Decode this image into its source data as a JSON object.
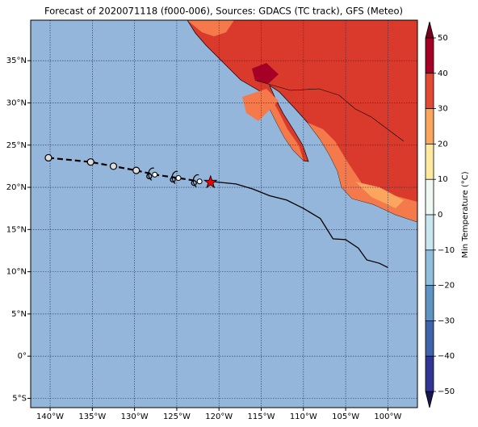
{
  "title": "Forecast of 2020071118 (f000-006), Sources: GDACS (TC track), GFS (Meteo)",
  "lonlim": [
    -142.3,
    -96.5
  ],
  "latlim": [
    -6.1,
    39.8
  ],
  "lon_ticks": [
    {
      "value": -140,
      "label": "140°W"
    },
    {
      "value": -135,
      "label": "135°W"
    },
    {
      "value": -130,
      "label": "130°W"
    },
    {
      "value": -125,
      "label": "125°W"
    },
    {
      "value": -120,
      "label": "120°W"
    },
    {
      "value": -115,
      "label": "115°W"
    },
    {
      "value": -110,
      "label": "110°W"
    },
    {
      "value": -105,
      "label": "105°W"
    },
    {
      "value": -100,
      "label": "100°W"
    }
  ],
  "lat_ticks": [
    {
      "value": -5,
      "label": "5°S"
    },
    {
      "value": 0,
      "label": "0°"
    },
    {
      "value": 5,
      "label": "5°N"
    },
    {
      "value": 10,
      "label": "10°N"
    },
    {
      "value": 15,
      "label": "15°N"
    },
    {
      "value": 20,
      "label": "20°N"
    },
    {
      "value": 25,
      "label": "25°N"
    },
    {
      "value": 30,
      "label": "30°N"
    },
    {
      "value": 35,
      "label": "35°N"
    }
  ],
  "colorbar": {
    "label": "Min Temperature (°C)",
    "lim": [
      -50,
      50
    ],
    "ticks": [
      {
        "value": -50,
        "label": "−50"
      },
      {
        "value": -40,
        "label": "−40"
      },
      {
        "value": -30,
        "label": "−30"
      },
      {
        "value": -20,
        "label": "−20"
      },
      {
        "value": -10,
        "label": "−10"
      },
      0,
      10,
      20,
      30,
      40,
      50
    ],
    "colors": [
      "#313695",
      "#3f64aa",
      "#5f93c2",
      "#91bedb",
      "#c9e6ef",
      "#eff8f3",
      "#fee9a0",
      "#fba55f",
      "#e24a33",
      "#a50026"
    ],
    "under_color": "#17174f",
    "over_color": "#7a0020"
  },
  "track": {
    "past": {
      "lon": [
        -140.2,
        -135.2,
        -132.5,
        -129.8,
        -127.6,
        -124.8,
        -122.3
      ],
      "lat": [
        23.5,
        23.0,
        22.5,
        22.0,
        21.5,
        21.1,
        20.7
      ]
    },
    "current": {
      "lon": -121.0,
      "lat": 20.6
    },
    "forecast": {
      "lon": [
        -121.0,
        -118.0,
        -116.0,
        -114.0,
        -112.0,
        -110.0,
        -108.0,
        -106.5,
        -105.0,
        -103.5,
        -102.5,
        -101.0,
        -100.0
      ],
      "lat": [
        20.7,
        20.4,
        19.8,
        19.0,
        18.5,
        17.5,
        16.3,
        13.9,
        13.8,
        12.8,
        11.4,
        11.0,
        10.5
      ]
    }
  }
}
